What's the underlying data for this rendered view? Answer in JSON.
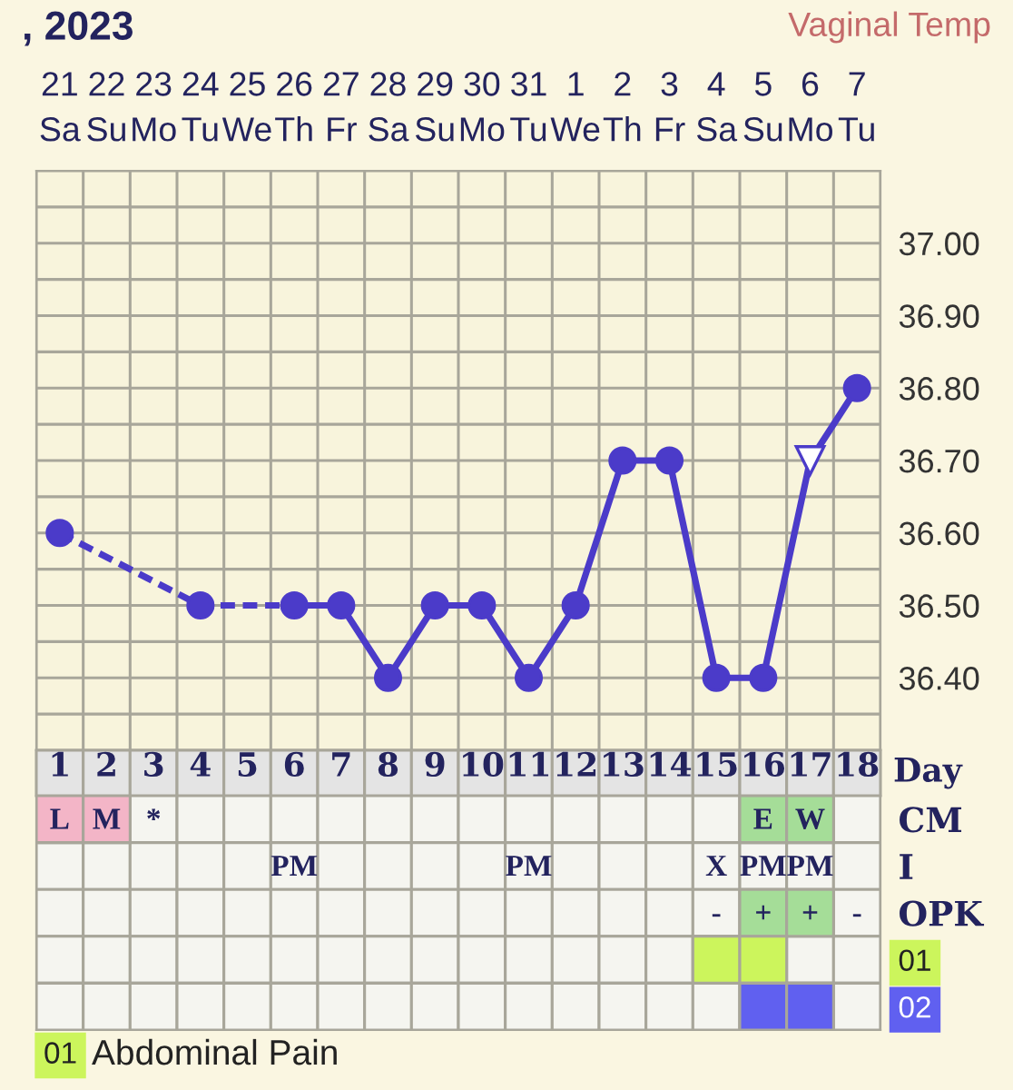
{
  "chart_data": [
    {
      "type": "line",
      "title": ", 2023",
      "subtitle": "Vaginal Temp",
      "categories": [
        "21\nSa",
        "22\nSu",
        "23\nMo",
        "24\nTu",
        "25\nWe",
        "26\nTh",
        "27\nFr",
        "28\nSa",
        "29\nSu",
        "30\nMo",
        "31\nTu",
        "1\nWe",
        "2\nTh",
        "3\nFr",
        "4\nSa",
        "5\nSu",
        "6\nMo",
        "7\nTu"
      ],
      "ylim": [
        36.3,
        37.1
      ],
      "yticks": [
        {
          "value": 36.3,
          "label": null
        },
        {
          "value": 36.35,
          "label": null
        },
        {
          "value": 36.4,
          "label": "36.40"
        },
        {
          "value": 36.45,
          "label": null
        },
        {
          "value": 36.5,
          "label": "36.50"
        },
        {
          "value": 36.55,
          "label": null
        },
        {
          "value": 36.6,
          "label": "36.60"
        },
        {
          "value": 36.65,
          "label": null
        },
        {
          "value": 36.7,
          "label": "36.70"
        },
        {
          "value": 36.75,
          "label": null
        },
        {
          "value": 36.8,
          "label": "36.80"
        },
        {
          "value": 36.85,
          "label": null
        },
        {
          "value": 36.9,
          "label": "36.90"
        },
        {
          "value": 36.95,
          "label": null
        },
        {
          "value": 37.0,
          "label": "37.00"
        },
        {
          "value": 37.05,
          "label": null
        },
        {
          "value": 37.1,
          "label": null
        }
      ],
      "grid": true,
      "series": [
        {
          "type": "line",
          "color": "#4b3bc9",
          "line_style": "dashed",
          "marker": "none",
          "values": [
            36.6,
            null,
            null,
            36.5,
            null,
            36.5,
            null,
            null,
            null,
            null,
            null,
            null,
            null,
            null,
            null,
            null,
            null,
            null
          ]
        },
        {
          "type": "line",
          "color": "#4b3bc9",
          "line_style": "solid",
          "marker": "none",
          "values": [
            null,
            null,
            null,
            null,
            null,
            36.5,
            36.5,
            36.4,
            36.5,
            36.5,
            36.4,
            36.5,
            36.7,
            36.7,
            36.4,
            36.4,
            36.7,
            36.8
          ]
        },
        {
          "type": "scatter",
          "color": "#4b3bc9",
          "marker": "circle",
          "values": [
            36.6,
            null,
            null,
            36.5,
            null,
            36.5,
            36.5,
            36.4,
            36.5,
            36.5,
            36.4,
            36.5,
            36.7,
            36.7,
            36.4,
            36.4,
            null,
            36.8
          ]
        },
        {
          "type": "scatter",
          "color": "#4b3bc9",
          "marker": "triangle",
          "values": [
            null,
            null,
            null,
            null,
            null,
            null,
            null,
            null,
            null,
            null,
            null,
            null,
            null,
            null,
            null,
            null,
            36.7,
            null
          ]
        }
      ]
    },
    {
      "type": "heatmap",
      "xlabel": "Day",
      "categories": [
        "1",
        "2",
        "3",
        "4",
        "5",
        "6",
        "7",
        "8",
        "9",
        "10",
        "11",
        "12",
        "13",
        "14",
        "15",
        "16",
        "17",
        "18"
      ],
      "y_categories": [
        "CM",
        "I",
        "OPK",
        "01",
        "02"
      ],
      "cells": [
        [
          null,
          null,
          null,
          null,
          null,
          null,
          null,
          null,
          null,
          null,
          null,
          null,
          null,
          null,
          null,
          null,
          null,
          null
        ],
        [
          null,
          null,
          null,
          null,
          null,
          null,
          null,
          null,
          null,
          null,
          null,
          null,
          null,
          null,
          null,
          null,
          null,
          null
        ],
        [
          null,
          null,
          null,
          null,
          null,
          null,
          null,
          null,
          null,
          null,
          null,
          null,
          null,
          null,
          null,
          null,
          null,
          null
        ],
        [
          null,
          null,
          null,
          null,
          null,
          null,
          null,
          null,
          null,
          null,
          null,
          null,
          null,
          null,
          null,
          null,
          null,
          null
        ],
        [
          null,
          null,
          null,
          null,
          null,
          null,
          null,
          null,
          null,
          null,
          null,
          null,
          null,
          null,
          null,
          null,
          null,
          null
        ]
      ],
      "cell_labels": [
        [
          "L",
          "M",
          "*",
          null,
          null,
          null,
          null,
          null,
          null,
          null,
          null,
          null,
          null,
          null,
          null,
          "E",
          "W",
          null
        ],
        [
          null,
          null,
          null,
          null,
          null,
          "PM",
          null,
          null,
          null,
          null,
          "PM",
          null,
          null,
          null,
          "X",
          "PM",
          "PM",
          null
        ],
        [
          null,
          null,
          null,
          null,
          null,
          null,
          null,
          null,
          null,
          null,
          null,
          null,
          null,
          null,
          "-",
          "+",
          "+",
          "-"
        ],
        [
          null,
          null,
          null,
          null,
          null,
          null,
          null,
          null,
          null,
          null,
          null,
          null,
          null,
          null,
          null,
          null,
          null,
          null
        ],
        [
          null,
          null,
          null,
          null,
          null,
          null,
          null,
          null,
          null,
          null,
          null,
          null,
          null,
          null,
          null,
          null,
          null,
          null
        ]
      ],
      "colors": [
        [
          "#f3b5c7",
          "#f3b5c7",
          null,
          null,
          null,
          null,
          null,
          null,
          null,
          null,
          null,
          null,
          null,
          null,
          null,
          "#a5dd98",
          "#a5dd98",
          null
        ],
        [
          null,
          null,
          null,
          null,
          null,
          null,
          null,
          null,
          null,
          null,
          null,
          null,
          null,
          null,
          null,
          null,
          null,
          null
        ],
        [
          null,
          null,
          null,
          null,
          null,
          null,
          null,
          null,
          null,
          null,
          null,
          null,
          null,
          null,
          null,
          "#a5dd98",
          "#a5dd98",
          null
        ],
        [
          null,
          null,
          null,
          null,
          null,
          null,
          null,
          null,
          null,
          null,
          null,
          null,
          null,
          null,
          "#ccf55c",
          "#ccf55c",
          null,
          null
        ],
        [
          null,
          null,
          null,
          null,
          null,
          null,
          null,
          null,
          null,
          null,
          null,
          null,
          null,
          null,
          null,
          "#6060f0",
          "#6060f0",
          null
        ]
      ],
      "annotations": [
        "01 Abdominal Pain"
      ]
    }
  ]
}
